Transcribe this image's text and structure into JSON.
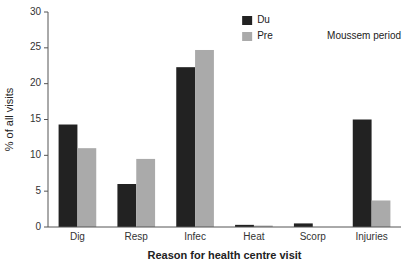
{
  "chart_data": {
    "type": "bar",
    "xlabel": "Reason for health centre visit",
    "ylabel": "% of all visits",
    "categories": [
      "Dig",
      "Resp",
      "Infec",
      "Heat",
      "Scorp",
      "Injuries"
    ],
    "series": [
      {
        "name": "Du",
        "color": "#222222",
        "values": [
          14.3,
          6.0,
          22.3,
          0.3,
          0.5,
          15.0
        ]
      },
      {
        "name": "Pre",
        "color": "#aaaaaa",
        "values": [
          11.0,
          9.5,
          24.7,
          0.2,
          0.0,
          3.7
        ]
      }
    ],
    "ylim": [
      0,
      30
    ],
    "yticks": [
      0,
      5,
      10,
      15,
      20,
      25,
      30
    ],
    "grid": false,
    "legend": "upper right",
    "annotations": [
      "Moussem period"
    ]
  }
}
